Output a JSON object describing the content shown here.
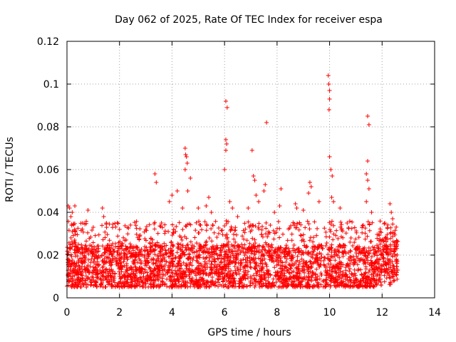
{
  "chart_data": {
    "type": "scatter",
    "title": "Day 062 of 2025, Rate Of TEC Index for receiver espa",
    "xlabel": "GPS time / hours",
    "ylabel": "ROTI / TECUs",
    "xlim": [
      0,
      14
    ],
    "ylim": [
      0,
      0.12
    ],
    "xticks": [
      "0",
      "2",
      "4",
      "6",
      "8",
      "10",
      "12",
      "14"
    ],
    "yticks": [
      "0",
      "0.02",
      "0.04",
      "0.06",
      "0.08",
      "0.1",
      "0.12"
    ],
    "xtick_values": [
      0,
      2,
      4,
      6,
      8,
      10,
      12,
      14
    ],
    "ytick_values": [
      0,
      0.02,
      0.04,
      0.06,
      0.08,
      0.1,
      0.12
    ],
    "grid": true,
    "marker": "+",
    "color": "#ff0000",
    "series": [
      {
        "name": "ROTI",
        "x_range": [
          0,
          12.6
        ],
        "baseline_range": [
          0.005,
          0.025
        ],
        "points": [
          [
            0.05,
            0.043
          ],
          [
            0.1,
            0.042
          ],
          [
            0.15,
            0.038
          ],
          [
            0.2,
            0.04
          ],
          [
            0.3,
            0.043
          ],
          [
            0.6,
            0.035
          ],
          [
            0.8,
            0.041
          ],
          [
            1.0,
            0.033
          ],
          [
            1.35,
            0.042
          ],
          [
            1.4,
            0.038
          ],
          [
            1.5,
            0.035
          ],
          [
            2.0,
            0.032
          ],
          [
            3.0,
            0.032
          ],
          [
            3.35,
            0.058
          ],
          [
            3.4,
            0.054
          ],
          [
            3.6,
            0.035
          ],
          [
            3.9,
            0.045
          ],
          [
            4.0,
            0.048
          ],
          [
            4.2,
            0.05
          ],
          [
            4.4,
            0.042
          ],
          [
            4.5,
            0.07
          ],
          [
            4.52,
            0.067
          ],
          [
            4.55,
            0.066
          ],
          [
            4.58,
            0.063
          ],
          [
            4.5,
            0.06
          ],
          [
            4.7,
            0.056
          ],
          [
            4.6,
            0.05
          ],
          [
            5.0,
            0.042
          ],
          [
            5.3,
            0.043
          ],
          [
            5.4,
            0.047
          ],
          [
            5.5,
            0.04
          ],
          [
            6.05,
            0.092
          ],
          [
            6.1,
            0.089
          ],
          [
            6.05,
            0.074
          ],
          [
            6.08,
            0.072
          ],
          [
            6.05,
            0.069
          ],
          [
            6.0,
            0.06
          ],
          [
            6.2,
            0.045
          ],
          [
            6.3,
            0.042
          ],
          [
            6.5,
            0.038
          ],
          [
            6.9,
            0.042
          ],
          [
            7.05,
            0.069
          ],
          [
            7.1,
            0.057
          ],
          [
            7.15,
            0.055
          ],
          [
            7.2,
            0.048
          ],
          [
            7.3,
            0.045
          ],
          [
            7.6,
            0.082
          ],
          [
            7.55,
            0.053
          ],
          [
            7.5,
            0.05
          ],
          [
            7.9,
            0.04
          ],
          [
            8.15,
            0.051
          ],
          [
            8.1,
            0.043
          ],
          [
            8.7,
            0.044
          ],
          [
            8.75,
            0.042
          ],
          [
            9.0,
            0.041
          ],
          [
            9.25,
            0.054
          ],
          [
            9.3,
            0.052
          ],
          [
            9.2,
            0.049
          ],
          [
            9.6,
            0.045
          ],
          [
            9.95,
            0.104
          ],
          [
            9.97,
            0.1
          ],
          [
            10.0,
            0.097
          ],
          [
            10.0,
            0.093
          ],
          [
            9.98,
            0.088
          ],
          [
            10.0,
            0.066
          ],
          [
            10.05,
            0.06
          ],
          [
            10.1,
            0.057
          ],
          [
            10.08,
            0.047
          ],
          [
            10.15,
            0.045
          ],
          [
            10.4,
            0.042
          ],
          [
            11.45,
            0.085
          ],
          [
            11.5,
            0.081
          ],
          [
            11.45,
            0.064
          ],
          [
            11.4,
            0.058
          ],
          [
            11.45,
            0.055
          ],
          [
            11.5,
            0.051
          ],
          [
            11.4,
            0.045
          ],
          [
            11.6,
            0.04
          ],
          [
            12.1,
            0.035
          ],
          [
            12.3,
            0.044
          ],
          [
            12.35,
            0.04
          ],
          [
            12.4,
            0.037
          ]
        ]
      }
    ]
  }
}
